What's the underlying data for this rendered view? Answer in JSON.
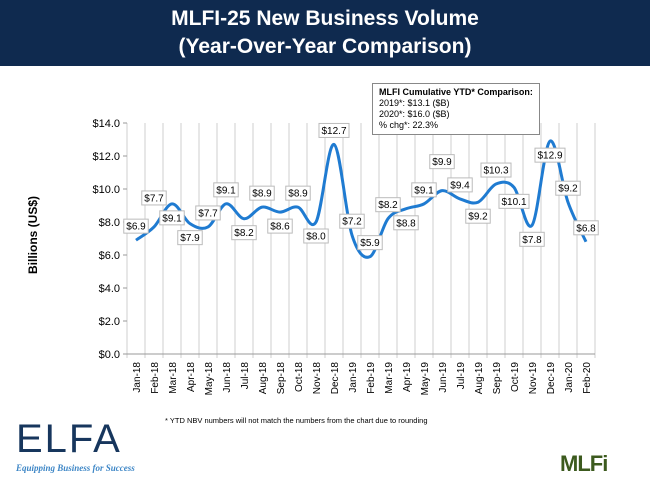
{
  "header": {
    "title_line1": "MLFI-25 New Business Volume",
    "title_line2": "(Year-Over-Year Comparison)"
  },
  "callout": {
    "heading": "MLFI Cumulative YTD* Comparison:",
    "line1": "2019*: $13.1 ($B)",
    "line2": "2020*: $16.0 ($B)",
    "line3": "% chg*:  22.3%"
  },
  "footnote": "* YTD NBV numbers will not match the numbers from the chart due to rounding",
  "logos": {
    "elfa": "ELFA",
    "elfa_tagline": "Equipping Business for Success",
    "mlfi": "MLFi"
  },
  "chart_data": {
    "type": "line",
    "title": "MLFI-25 New Business Volume (Year-Over-Year Comparison)",
    "ylabel": "Billions (US$)",
    "xlabel": "",
    "ylim": [
      0,
      14
    ],
    "yticks": [
      "$0.0",
      "$2.0",
      "$4.0",
      "$6.0",
      "$8.0",
      "$10.0",
      "$12.0",
      "$14.0"
    ],
    "grid": "vertical",
    "line_color": "#1f7bd1",
    "categories": [
      "Jan-18",
      "Feb-18",
      "Mar-18",
      "Apr-18",
      "May-18",
      "Jun-18",
      "Jul-18",
      "Aug-18",
      "Sep-18",
      "Oct-18",
      "Nov-18",
      "Dec-18",
      "Jan-19",
      "Feb-19",
      "Mar-19",
      "Apr-19",
      "May-19",
      "Jun-19",
      "Jul-19",
      "Aug-19",
      "Sep-19",
      "Oct-19",
      "Nov-19",
      "Dec-19",
      "Jan-20",
      "Feb-20"
    ],
    "values": [
      6.9,
      7.7,
      9.1,
      7.9,
      7.7,
      9.1,
      8.2,
      8.9,
      8.6,
      8.9,
      8.0,
      12.7,
      7.2,
      5.9,
      8.2,
      8.8,
      9.1,
      9.9,
      9.4,
      9.2,
      10.3,
      10.1,
      7.8,
      12.9,
      9.2,
      6.8
    ],
    "labels": [
      "$6.9",
      "$7.7",
      "$9.1",
      "$7.9",
      "$7.7",
      "$9.1",
      "$8.2",
      "$8.9",
      "$8.6",
      "$8.9",
      "$8.0",
      "$12.7",
      "$7.2",
      "$5.9",
      "$8.2",
      "$8.8",
      "$9.1",
      "$9.9",
      "$9.4",
      "$9.2",
      "$10.3",
      "$10.1",
      "$7.8",
      "$12.9",
      "$9.2",
      "$6.8"
    ]
  }
}
